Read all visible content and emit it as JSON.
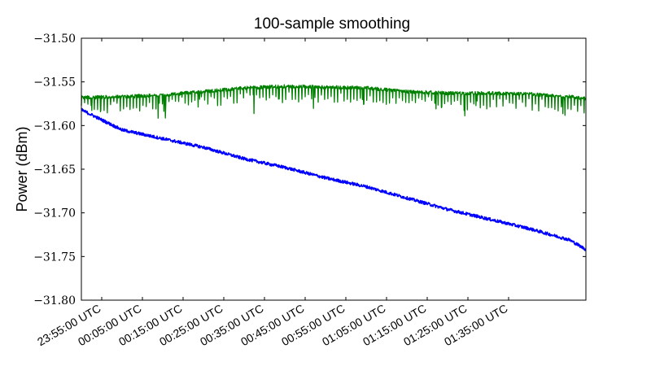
{
  "chart_data": {
    "type": "line",
    "title": "100-sample smoothing",
    "xlabel": "",
    "ylabel": "Power (dBm)",
    "xlim_minutes": [
      -10,
      114
    ],
    "ylim": [
      -31.8,
      -31.5
    ],
    "yticks": [
      -31.5,
      -31.55,
      -31.6,
      -31.65,
      -31.7,
      -31.75,
      -31.8
    ],
    "ytick_labels": [
      "−31.50",
      "−31.55",
      "−31.60",
      "−31.65",
      "−31.70",
      "−31.75",
      "−31.80"
    ],
    "xticks_minutes": [
      -5,
      5,
      15,
      25,
      35,
      45,
      55,
      65,
      75,
      85,
      95
    ],
    "xtick_labels": [
      "23:55:00 UTC",
      "00:05:00 UTC",
      "00:15:00 UTC",
      "00:25:00 UTC",
      "00:35:00 UTC",
      "00:45:00 UTC",
      "00:55:00 UTC",
      "01:05:00 UTC",
      "01:15:00 UTC",
      "01:25:00 UTC",
      "01:35:00 UTC"
    ],
    "grid": false,
    "series": [
      {
        "color": "#008000",
        "x": [
          -10,
          0,
          10,
          20,
          30,
          40,
          50,
          60,
          70,
          80,
          90,
          100,
          110,
          114
        ],
        "y": [
          -31.568,
          -31.567,
          -31.565,
          -31.561,
          -31.557,
          -31.555,
          -31.556,
          -31.557,
          -31.561,
          -31.563,
          -31.563,
          -31.564,
          -31.567,
          -31.569
        ]
      },
      {
        "color": "#0000ff",
        "x": [
          -10,
          0,
          10,
          20,
          30,
          40,
          50,
          60,
          70,
          80,
          90,
          100,
          110,
          114
        ],
        "y": [
          -31.582,
          -31.605,
          -31.615,
          -31.625,
          -31.638,
          -31.648,
          -31.66,
          -31.67,
          -31.683,
          -31.696,
          -31.707,
          -31.718,
          -31.731,
          -31.742
        ]
      }
    ]
  }
}
